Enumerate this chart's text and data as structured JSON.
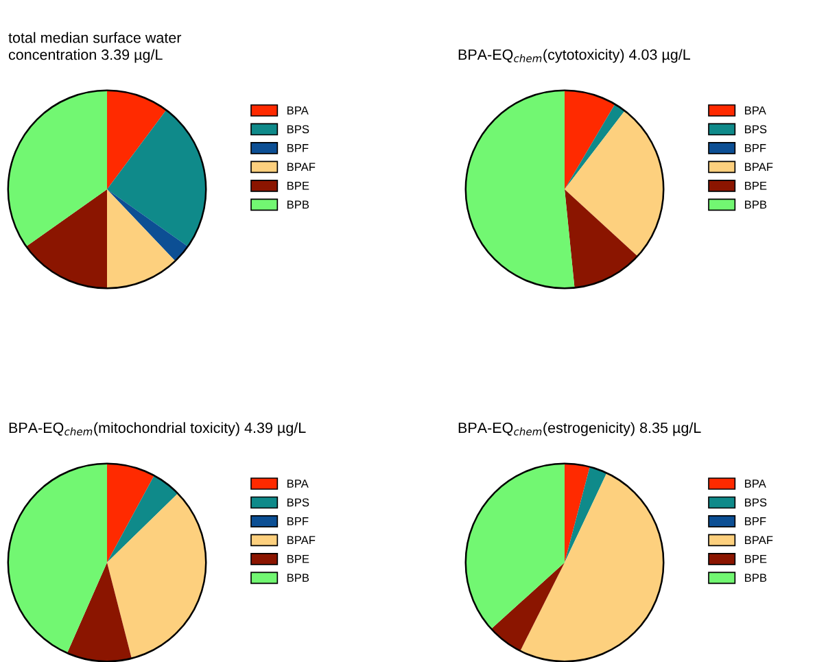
{
  "chart_data": [
    {
      "type": "pie",
      "title": "total median surface water\nconcentration 3.39 µg/L",
      "categories": [
        "BPA",
        "BPS",
        "BPF",
        "BPAF",
        "BPE",
        "BPB"
      ],
      "values": [
        10.2,
        24.6,
        3.1,
        12.1,
        15.2,
        34.8
      ],
      "colors": [
        "#ff2a00",
        "#0f8a8a",
        "#0c4f94",
        "#fdd07e",
        "#8b1500",
        "#72f772"
      ],
      "legend": "right"
    },
    {
      "type": "pie",
      "title": "BPA-EQ$_{chem}$(cytotoxicity) 4.03 µg/L",
      "categories": [
        "BPA",
        "BPS",
        "BPF",
        "BPAF",
        "BPE",
        "BPB"
      ],
      "values": [
        8.5,
        1.9,
        0,
        26.4,
        11.6,
        51.6
      ],
      "colors": [
        "#ff2a00",
        "#0f8a8a",
        "#0c4f94",
        "#fdd07e",
        "#8b1500",
        "#72f772"
      ],
      "legend": "right"
    },
    {
      "type": "pie",
      "title": "BPA-EQ$_{chem}$(mitochondrial toxicity) 4.39 µg/L",
      "categories": [
        "BPA",
        "BPS",
        "BPF",
        "BPAF",
        "BPE",
        "BPB"
      ],
      "values": [
        7.9,
        4.8,
        0,
        33.3,
        10.6,
        43.4
      ],
      "colors": [
        "#ff2a00",
        "#0f8a8a",
        "#0c4f94",
        "#fdd07e",
        "#8b1500",
        "#72f772"
      ],
      "legend": "right"
    },
    {
      "type": "pie",
      "title": "BPA-EQ$_{chem}$(estrogenicity) 8.35 µg/L",
      "categories": [
        "BPA",
        "BPS",
        "BPF",
        "BPAF",
        "BPE",
        "BPB"
      ],
      "values": [
        4.1,
        2.9,
        0,
        50.4,
        5.9,
        36.7
      ],
      "colors": [
        "#ff2a00",
        "#0f8a8a",
        "#0c4f94",
        "#fdd07e",
        "#8b1500",
        "#72f772"
      ],
      "legend": "right"
    }
  ]
}
